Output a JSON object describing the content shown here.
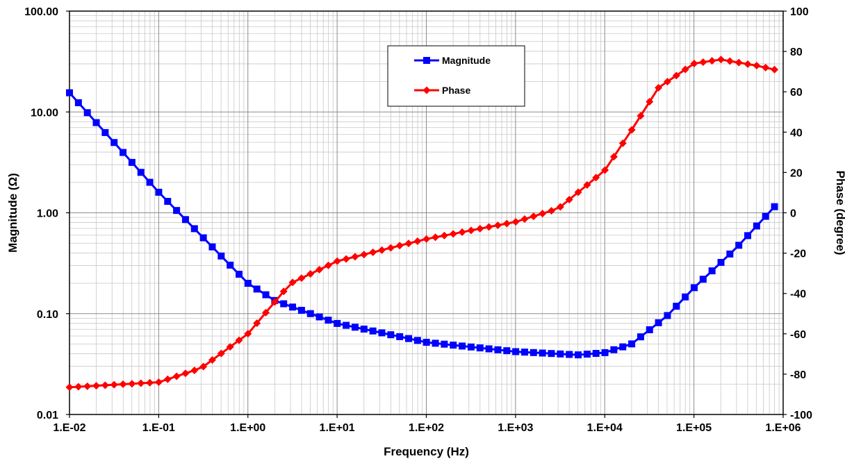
{
  "chart_data": {
    "type": "line",
    "xlabel": "Frequency (Hz)",
    "ylabel_left": "Magnitude (Ω)",
    "ylabel_right": "Phase (degree)",
    "x_scale": "log",
    "y_left_scale": "log",
    "xlim": [
      0.01,
      1000000
    ],
    "ylim_left": [
      0.01,
      100
    ],
    "ylim_right": [
      -100,
      100
    ],
    "x_ticks": [
      "1.E-02",
      "1.E-01",
      "1.E+00",
      "1.E+01",
      "1.E+02",
      "1.E+03",
      "1.E+04",
      "1.E+05",
      "1.E+06"
    ],
    "y_left_ticks": [
      "0.01",
      "0.10",
      "1.00",
      "10.00",
      "100.00"
    ],
    "y_right_ticks": [
      "-100",
      "-80",
      "-60",
      "-40",
      "-20",
      "0",
      "20",
      "40",
      "60",
      "80",
      "100"
    ],
    "grid": true,
    "legend_position": "top-center",
    "series": [
      {
        "name": "Magnitude",
        "axis": "left",
        "color": "#0000ff",
        "marker": "square",
        "x": [
          0.01,
          0.1,
          1,
          2,
          10,
          100,
          1000,
          5000,
          10000,
          20000,
          50000,
          100000,
          300000,
          800000
        ],
        "y": [
          15.5,
          1.6,
          0.2,
          0.135,
          0.08,
          0.052,
          0.042,
          0.039,
          0.041,
          0.05,
          0.095,
          0.18,
          0.45,
          1.15
        ]
      },
      {
        "name": "Phase",
        "axis": "right",
        "color": "#ff0000",
        "marker": "diamond",
        "x": [
          0.01,
          0.1,
          0.3,
          1,
          3,
          10,
          100,
          1000,
          3000,
          10000,
          20000,
          40000,
          100000,
          200000,
          500000,
          800000
        ],
        "y": [
          -86.5,
          -84,
          -77,
          -60,
          -35,
          -24,
          -13,
          -4.5,
          2,
          21,
          41,
          62,
          74,
          76,
          73,
          71
        ]
      }
    ]
  }
}
